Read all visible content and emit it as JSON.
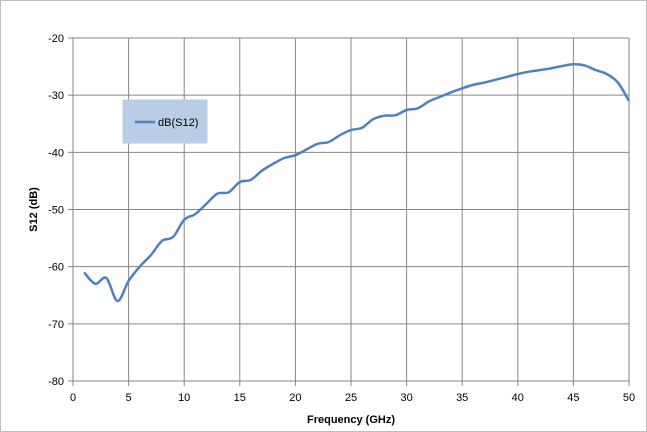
{
  "chart_data": {
    "type": "line",
    "title": "",
    "xlabel": "Frequency (GHz)",
    "ylabel": "S12 (dB)",
    "xlim": [
      0,
      50
    ],
    "ylim": [
      -80,
      -20
    ],
    "x_ticks": [
      0,
      5,
      10,
      15,
      20,
      25,
      30,
      35,
      40,
      45,
      50
    ],
    "y_ticks": [
      -20,
      -30,
      -40,
      -50,
      -60,
      -70,
      -80
    ],
    "grid": true,
    "legend_position": "upper-left",
    "series": [
      {
        "name": "dB(S12)",
        "color": "#4f81bd",
        "x": [
          1,
          2,
          3,
          4,
          5,
          6,
          7,
          8,
          9,
          10,
          11,
          12,
          13,
          14,
          15,
          16,
          17,
          18,
          19,
          20,
          21,
          22,
          23,
          24,
          25,
          26,
          27,
          28,
          29,
          30,
          31,
          32,
          33,
          34,
          35,
          36,
          37,
          38,
          39,
          40,
          41,
          42,
          43,
          44,
          45,
          46,
          47,
          48,
          49,
          50
        ],
        "y": [
          -61,
          -63,
          -62,
          -66,
          -62.5,
          -60,
          -58,
          -55.5,
          -54.8,
          -51.8,
          -50.8,
          -49,
          -47.2,
          -47,
          -45.2,
          -44.8,
          -43.2,
          -42,
          -41,
          -40.5,
          -39.5,
          -38.5,
          -38.2,
          -37,
          -36.1,
          -35.7,
          -34.2,
          -33.6,
          -33.5,
          -32.6,
          -32.3,
          -31.1,
          -30.3,
          -29.5,
          -28.8,
          -28.2,
          -27.8,
          -27.3,
          -26.8,
          -26.3,
          -25.9,
          -25.6,
          -25.3,
          -24.9,
          -24.6,
          -24.8,
          -25.6,
          -26.3,
          -27.8,
          -31
        ]
      }
    ]
  }
}
